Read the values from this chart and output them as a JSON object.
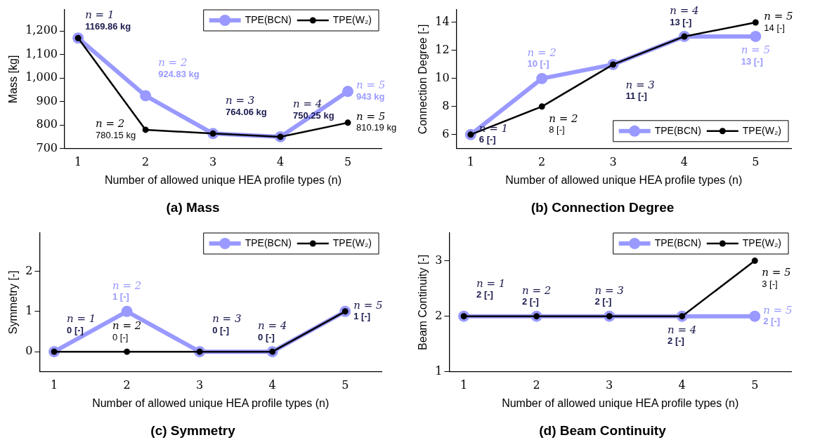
{
  "chart_data": [
    {
      "type": "line",
      "title": "(a) Mass",
      "xlabel": "Number of allowed unique HEA profile types (n)",
      "ylabel": "Mass [kg]",
      "x": [
        1,
        2,
        3,
        4,
        5
      ],
      "xlim": [
        0.8,
        5.5
      ],
      "xticks": [
        1,
        2,
        3,
        4,
        5
      ],
      "ylim": [
        700,
        1290
      ],
      "yticks": [
        700,
        800,
        900,
        {
          "value": 1000,
          "label": "1,000"
        },
        {
          "value": 1100,
          "label": "1,100"
        },
        {
          "value": 1200,
          "label": "1,200"
        }
      ],
      "legend": "top right",
      "grid": false,
      "marker": "circle",
      "series": [
        {
          "name": "TPE(BCN)",
          "color": "#9999ff",
          "values": [
            1169.86,
            924.83,
            764.06,
            750.25,
            943
          ]
        },
        {
          "name": "TPE(W₂)",
          "color": "#000000",
          "values": [
            1169.86,
            780.15,
            764.06,
            750.25,
            810.19
          ]
        }
      ],
      "annotations": [
        {
          "text": "n = 1\n1169.86 kg",
          "x": 1,
          "y": 1169.86
        },
        {
          "text": "n = 2\n924.83 kg",
          "x": 2,
          "y": 924.83
        },
        {
          "text": "n = 2\n780.15 kg",
          "x": 2,
          "y": 780.15
        },
        {
          "text": "n = 3\n764.06 kg",
          "x": 3,
          "y": 764.06
        },
        {
          "text": "n = 4\n750.25 kg",
          "x": 4,
          "y": 750.25
        },
        {
          "text": "n = 5\n943 kg",
          "x": 5,
          "y": 943
        },
        {
          "text": "n = 5\n810.19 kg",
          "x": 5,
          "y": 810.19
        }
      ]
    },
    {
      "type": "line",
      "title": "(b) Connection Degree",
      "xlabel": "Number of allowed unique HEA profile types (n)",
      "ylabel": "Connection Degree [-]",
      "x": [
        1,
        2,
        3,
        4,
        5
      ],
      "xlim": [
        0.8,
        5.5
      ],
      "xticks": [
        1,
        2,
        3,
        4,
        5
      ],
      "ylim": [
        5,
        14.9
      ],
      "yticks": [
        6,
        8,
        10,
        12,
        14
      ],
      "legend": "bottom right",
      "grid": false,
      "marker": "circle",
      "series": [
        {
          "name": "TPE(BCN)",
          "color": "#9999ff",
          "values": [
            6,
            10,
            11,
            13,
            13
          ]
        },
        {
          "name": "TPE(W₂)",
          "color": "#000000",
          "values": [
            6,
            8,
            11,
            13,
            14
          ]
        }
      ],
      "annotations": [
        {
          "text": "n = 1\n6 [-]",
          "x": 1,
          "y": 6
        },
        {
          "text": "n = 2\n10 [-]",
          "x": 2,
          "y": 10
        },
        {
          "text": "n = 2\n8 [-]",
          "x": 2,
          "y": 8
        },
        {
          "text": "n = 3\n11 [-]",
          "x": 3,
          "y": 11
        },
        {
          "text": "n = 4\n13 [-]",
          "x": 4,
          "y": 13
        },
        {
          "text": "n = 5\n14 [-]",
          "x": 5,
          "y": 14
        },
        {
          "text": "n = 5\n13 [-]",
          "x": 5,
          "y": 13
        }
      ]
    },
    {
      "type": "line",
      "title": "(c) Symmetry",
      "xlabel": "Number of allowed unique HEA profile types (n)",
      "ylabel": "Symmetry [-]",
      "x": [
        1,
        2,
        3,
        4,
        5
      ],
      "xlim": [
        0.8,
        5.5
      ],
      "xticks": [
        1,
        2,
        3,
        4,
        5
      ],
      "ylim": [
        -0.5,
        2.95
      ],
      "yticks": [
        0,
        1,
        2
      ],
      "legend": "top right",
      "grid": false,
      "marker": "circle",
      "series": [
        {
          "name": "TPE(BCN)",
          "color": "#9999ff",
          "values": [
            0,
            1,
            0,
            0,
            1
          ]
        },
        {
          "name": "TPE(W₂)",
          "color": "#000000",
          "values": [
            0,
            0,
            0,
            0,
            1
          ]
        }
      ],
      "annotations": [
        {
          "text": "n = 1\n0 [-]",
          "x": 1,
          "y": 0
        },
        {
          "text": "n = 2\n1 [-]",
          "x": 2,
          "y": 1
        },
        {
          "text": "n = 2\n0 [-]",
          "x": 2,
          "y": 0
        },
        {
          "text": "n = 3\n0 [-]",
          "x": 3,
          "y": 0
        },
        {
          "text": "n = 4\n0 [-]",
          "x": 4,
          "y": 0
        },
        {
          "text": "n = 5\n1 [-]",
          "x": 5,
          "y": 1
        }
      ]
    },
    {
      "type": "line",
      "title": "(d) Beam Continuity",
      "xlabel": "Number of allowed unique HEA profile types (n)",
      "ylabel": "Beam Continuity [-]",
      "x": [
        1,
        2,
        3,
        4,
        5
      ],
      "xlim": [
        0.8,
        5.5
      ],
      "xticks": [
        1,
        2,
        3,
        4,
        5
      ],
      "ylim": [
        1,
        3.5
      ],
      "yticks": [
        1,
        2,
        3
      ],
      "legend": "top right",
      "grid": false,
      "marker": "circle",
      "series": [
        {
          "name": "TPE(BCN)",
          "color": "#9999ff",
          "values": [
            2,
            2,
            2,
            2,
            2
          ]
        },
        {
          "name": "TPE(W₂)",
          "color": "#000000",
          "values": [
            2,
            2,
            2,
            2,
            3
          ]
        }
      ],
      "annotations": [
        {
          "text": "n = 1\n2 [-]",
          "x": 1,
          "y": 2
        },
        {
          "text": "n = 2\n2 [-]",
          "x": 2,
          "y": 2
        },
        {
          "text": "n = 3\n2 [-]",
          "x": 3,
          "y": 2
        },
        {
          "text": "n = 4\n2 [-]",
          "x": 4,
          "y": 2
        },
        {
          "text": "n = 5\n3 [-]",
          "x": 5,
          "y": 3
        },
        {
          "text": "n = 5\n2 [-]",
          "x": 5,
          "y": 2
        }
      ]
    }
  ]
}
